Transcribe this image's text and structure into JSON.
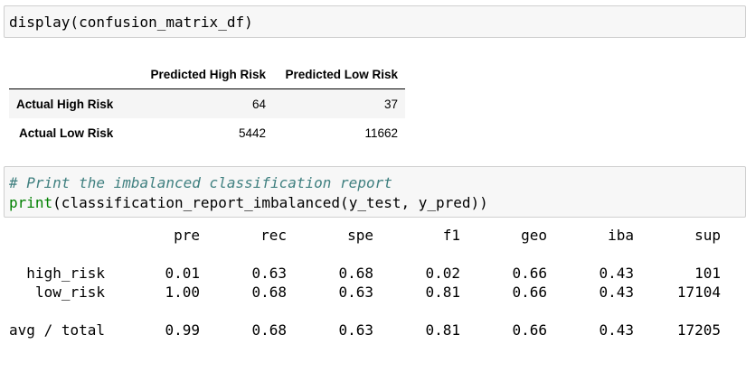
{
  "cell1": {
    "code": "display(confusion_matrix_df)"
  },
  "confusion_matrix": {
    "columns": [
      "Predicted High Risk",
      "Predicted Low Risk"
    ],
    "rows": [
      {
        "label": "Actual High Risk",
        "values": [
          "64",
          "37"
        ]
      },
      {
        "label": "Actual Low Risk",
        "values": [
          "5442",
          "11662"
        ]
      }
    ]
  },
  "cell2": {
    "comment": "# Print the imbalanced classification report",
    "print_fn": "print",
    "code_rest": "(classification_report_imbalanced(y_test, y_pred))"
  },
  "report": {
    "headers": [
      "pre",
      "rec",
      "spe",
      "f1",
      "geo",
      "iba",
      "sup"
    ],
    "rows": [
      {
        "label": "high_risk",
        "values": [
          "0.01",
          "0.63",
          "0.68",
          "0.02",
          "0.66",
          "0.43",
          "101"
        ]
      },
      {
        "label": "low_risk",
        "values": [
          "1.00",
          "0.68",
          "0.63",
          "0.81",
          "0.66",
          "0.43",
          "17104"
        ]
      },
      {
        "label": "avg / total",
        "values": [
          "0.99",
          "0.68",
          "0.63",
          "0.81",
          "0.66",
          "0.43",
          "17205"
        ]
      }
    ]
  }
}
